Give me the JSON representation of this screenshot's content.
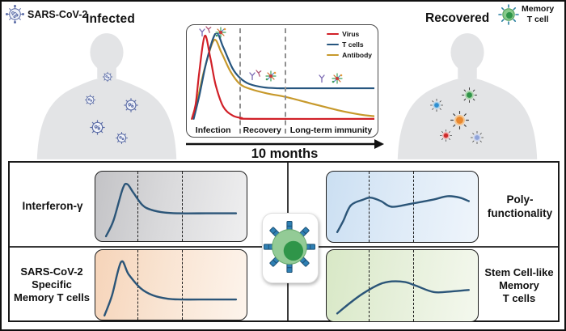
{
  "figure": {
    "virus_tag": {
      "label": "SARS-CoV-2"
    },
    "infected_label": "Infected",
    "recovered_label": "Recovered",
    "memory_cell_tag": {
      "lines": [
        "Memory",
        "T cell"
      ]
    },
    "timeline": {
      "axis_label": "10 months"
    },
    "colors": {
      "virus_line": "#d12028",
      "tcell_line": "#27567f",
      "antibody_line": "#c7992b",
      "mini_curve": "#2b5578",
      "silhouette": "#e3e4e6",
      "virus_particle": "#5b6ca6",
      "memory_cell_green": "#2f9549"
    }
  },
  "panels": {
    "interferon": {
      "label_lines": [
        "Interferon-γ"
      ]
    },
    "poly": {
      "label_lines": [
        "Poly-",
        "functionality"
      ]
    },
    "sars": {
      "label_lines": [
        "SARS-CoV-2",
        "Specific",
        "Memory T cells"
      ]
    },
    "stem": {
      "label_lines": [
        "Stem Cell-like",
        "Memory",
        "T cells"
      ]
    }
  },
  "chart_data": [
    {
      "type": "line",
      "title": "Infection to long-term immunity timeline",
      "xlabel": "10 months",
      "phases": [
        "Infection",
        "Recovery",
        "Long-term immunity"
      ],
      "phase_boundaries_pct": [
        27.7,
        51.3
      ],
      "legend_position": "top-right",
      "series": [
        {
          "name": "Virus",
          "color": "#d12028",
          "points": [
            [
              1,
              2
            ],
            [
              3,
              18
            ],
            [
              5,
              55
            ],
            [
              8,
              97
            ],
            [
              11,
              72
            ],
            [
              14,
              40
            ],
            [
              18,
              16
            ],
            [
              23,
              6
            ],
            [
              28,
              3
            ],
            [
              34,
              2
            ],
            [
              100,
              2
            ]
          ]
        },
        {
          "name": "T cells",
          "color": "#27567f",
          "points": [
            [
              2,
              2
            ],
            [
              5,
              28
            ],
            [
              9,
              68
            ],
            [
              14,
              100
            ],
            [
              18,
              84
            ],
            [
              23,
              60
            ],
            [
              27,
              49
            ],
            [
              32,
              42
            ],
            [
              40,
              38
            ],
            [
              48,
              37
            ],
            [
              55,
              37
            ],
            [
              100,
              37
            ]
          ]
        },
        {
          "name": "Antibody",
          "color": "#c7992b",
          "points": [
            [
              1,
              2
            ],
            [
              4,
              24
            ],
            [
              8,
              60
            ],
            [
              13,
              92
            ],
            [
              17,
              78
            ],
            [
              22,
              56
            ],
            [
              27,
              42
            ],
            [
              33,
              36
            ],
            [
              42,
              31
            ],
            [
              52,
              27
            ],
            [
              65,
              20
            ],
            [
              80,
              12
            ],
            [
              92,
              7
            ],
            [
              100,
              5
            ]
          ]
        }
      ]
    },
    {
      "type": "line",
      "title": "Interferon-γ",
      "dash_pct": [
        28,
        57
      ],
      "series": [
        {
          "name": "Interferon-γ",
          "color": "#2b5578",
          "points": [
            [
              7,
              7
            ],
            [
              12,
              30
            ],
            [
              18,
              75
            ],
            [
              21,
              82
            ],
            [
              25,
              70
            ],
            [
              31,
              52
            ],
            [
              37,
              45
            ],
            [
              46,
              41
            ],
            [
              55,
              40
            ],
            [
              75,
              40
            ],
            [
              93,
              40
            ]
          ]
        }
      ]
    },
    {
      "type": "line",
      "title": "Poly-functionality",
      "dash_pct": [
        28,
        57
      ],
      "series": [
        {
          "name": "Poly-functionality",
          "color": "#2b5578",
          "points": [
            [
              7,
              14
            ],
            [
              11,
              30
            ],
            [
              16,
              52
            ],
            [
              24,
              60
            ],
            [
              29,
              63
            ],
            [
              36,
              58
            ],
            [
              43,
              50
            ],
            [
              55,
              54
            ],
            [
              70,
              60
            ],
            [
              80,
              65
            ],
            [
              88,
              63
            ],
            [
              94,
              58
            ]
          ]
        }
      ]
    },
    {
      "type": "line",
      "title": "SARS-CoV-2 Specific Memory T cells",
      "dash_pct": [
        28,
        57
      ],
      "series": [
        {
          "name": "SARS-CoV-2 specific memory T cells",
          "color": "#2b5578",
          "points": [
            [
              6,
              6
            ],
            [
              11,
              35
            ],
            [
              17,
              83
            ],
            [
              22,
              65
            ],
            [
              30,
              45
            ],
            [
              38,
              35
            ],
            [
              48,
              30
            ],
            [
              57,
              29
            ],
            [
              75,
              29
            ],
            [
              93,
              29
            ]
          ]
        }
      ]
    },
    {
      "type": "line",
      "title": "Stem Cell-like Memory T cells",
      "dash_pct": [
        28,
        57
      ],
      "series": [
        {
          "name": "Stem cell-like memory T cells",
          "color": "#2b5578",
          "points": [
            [
              7,
              11
            ],
            [
              15,
              25
            ],
            [
              24,
              39
            ],
            [
              35,
              52
            ],
            [
              43,
              56
            ],
            [
              52,
              55
            ],
            [
              59,
              50
            ],
            [
              71,
              41
            ],
            [
              83,
              42
            ],
            [
              94,
              44
            ]
          ]
        }
      ]
    }
  ]
}
